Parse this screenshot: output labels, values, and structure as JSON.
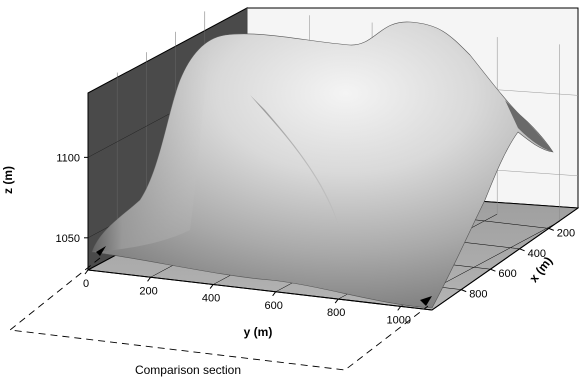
{
  "chart_data": {
    "type": "surface",
    "title": "",
    "xlabel": "x (m)",
    "ylabel": "y (m)",
    "zlabel": "z (m)",
    "x_ticks": [
      200,
      400,
      600,
      800
    ],
    "y_ticks": [
      0,
      200,
      400,
      600,
      800,
      1000
    ],
    "z_ticks": [
      1050,
      1100
    ],
    "xlim": [
      0,
      1000
    ],
    "ylim": [
      0,
      1100
    ],
    "zlim": [
      1030,
      1140
    ],
    "surface_shading": "grayscale",
    "grid": true,
    "annotation": "Comparison section"
  }
}
